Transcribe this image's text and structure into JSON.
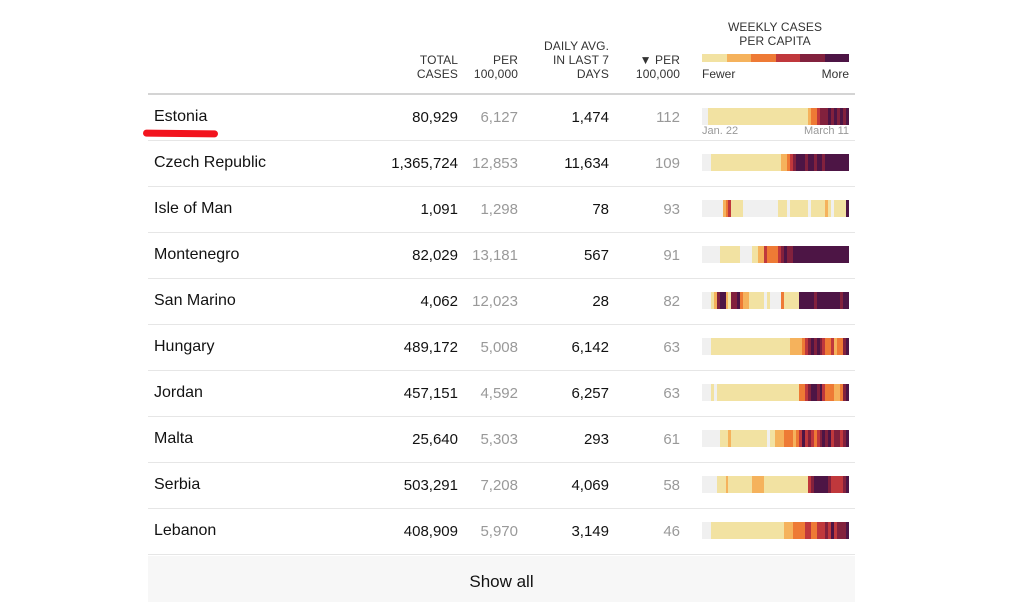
{
  "header": {
    "total_cases": "Total Cases",
    "per_100k": "Per 100,000",
    "daily_avg": "Daily Avg. In Last 7 Days",
    "per_100k_sorted": "▼ Per 100,000",
    "weekly": "Weekly Cases Per Capita",
    "legend_fewer": "Fewer",
    "legend_more": "More",
    "legend_colors": [
      "#f2e2a2",
      "#f5b25c",
      "#ee7a35",
      "#c0383c",
      "#82213d",
      "#4d1545"
    ]
  },
  "scale_colors": [
    "#f0f0f0",
    "#f2e2a2",
    "#f5b25c",
    "#ee7a35",
    "#c0383c",
    "#82213d",
    "#4d1545"
  ],
  "date_start": "Jan. 22",
  "date_end": "March 11",
  "rows": [
    {
      "name": "Estonia",
      "total": "80,929",
      "per100k": "6,127",
      "daily": "1,474",
      "per100k_daily": "112",
      "highlighted": true,
      "heat": "00111111111111111111111111111111111123345556565656"
    },
    {
      "name": "Czech Republic",
      "total": "1,365,724",
      "per100k": "12,853",
      "daily": "11,634",
      "per100k_daily": "109",
      "heat": "00011111111111111111111111122345666566566566666666"
    },
    {
      "name": "Isle of Man",
      "total": "1,091",
      "per100k": "1,298",
      "daily": "78",
      "per100k_daily": "93",
      "heat": "00000002341111000000000000111011111101111121011116"
    },
    {
      "name": "Montenegro",
      "total": "82,029",
      "per100k": "13,181",
      "daily": "567",
      "per100k_daily": "91",
      "heat": "00000011111110000112243333456556666666666666666666"
    },
    {
      "name": "San Marino",
      "total": "4,062",
      "per100k": "12,023",
      "daily": "28",
      "per100k_daily": "82",
      "heat": "00012566215563221111101000031111166666566666666566"
    },
    {
      "name": "Hungary",
      "total": "489,172",
      "per100k": "5,008",
      "daily": "6,142",
      "per100k_daily": "63",
      "heat": "00011111111111111111111111111122223456565433423356"
    },
    {
      "name": "Jordan",
      "total": "457,151",
      "per100k": "4,592",
      "daily": "6,257",
      "per100k_daily": "63",
      "heat": "00010111111111111111111111111111133456656433322356"
    },
    {
      "name": "Malta",
      "total": "25,640",
      "per100k": "5,303",
      "daily": "293",
      "per100k_daily": "61",
      "heat": "00000011121111111111110112223332346454345656455456"
    },
    {
      "name": "Serbia",
      "total": "503,291",
      "per100k": "7,208",
      "daily": "4,069",
      "per100k_daily": "58",
      "heat": "00000111211111111222211111111111111145666665444456"
    },
    {
      "name": "Lebanon",
      "total": "408,909",
      "per100k": "5,970",
      "daily": "3,149",
      "per100k_daily": "46",
      "heat": "00011111111111111111111111112223333443344454645556"
    }
  ],
  "show_all": "Show all"
}
